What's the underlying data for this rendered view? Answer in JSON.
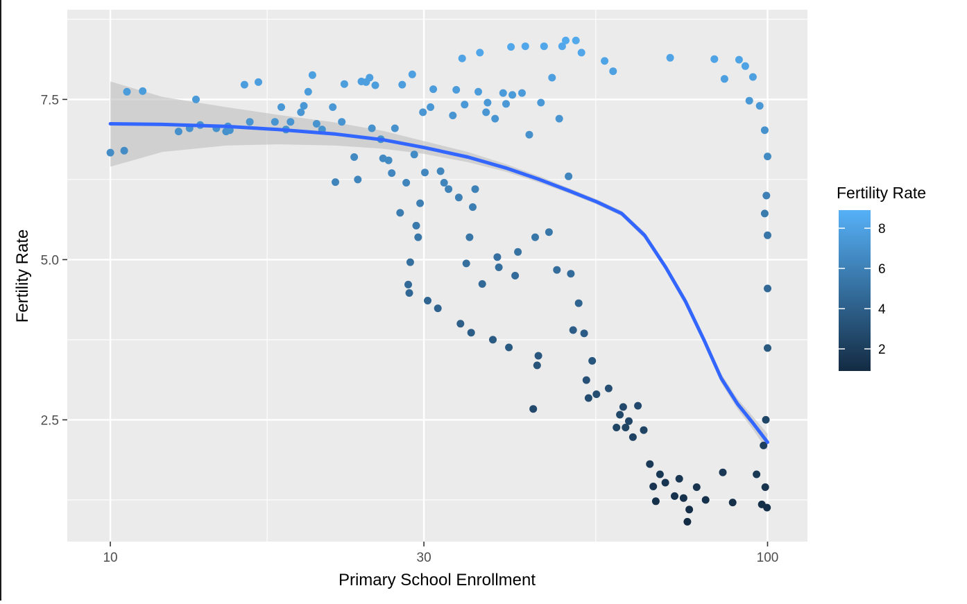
{
  "chart_data": {
    "type": "scatter",
    "title": "",
    "xlabel": "Primary School Enrollment",
    "ylabel": "Fertility Rate",
    "x_scale": "log10",
    "xlim": [
      8.6,
      115
    ],
    "ylim": [
      0.6,
      8.9
    ],
    "x_ticks": [
      10,
      30,
      100
    ],
    "x_tick_labels": [
      "10",
      "30",
      "100"
    ],
    "y_ticks": [
      2.5,
      5.0,
      7.5
    ],
    "y_tick_labels": [
      "2.5",
      "5.0",
      "7.5"
    ],
    "grid": true,
    "legend": {
      "title": "Fertility Rate",
      "placement": "right",
      "type": "colorbar",
      "ticks": [
        2,
        4,
        6,
        8
      ],
      "tick_labels": [
        "2",
        "4",
        "6",
        "8"
      ],
      "range": [
        0.9,
        8.9
      ],
      "color_low": "#132B43",
      "color_high": "#56B1F7"
    },
    "colors": {
      "panel_background": "#EBEBEB",
      "gridline": "#FFFFFF",
      "smooth_line": "#3366FF",
      "confidence_band": "#BEBEBE"
    },
    "smooth": {
      "method": "loess",
      "x": [
        10,
        12,
        15,
        18,
        22,
        26,
        30,
        35,
        40,
        45,
        50,
        55,
        60,
        65,
        70,
        75,
        80,
        85,
        90,
        95,
        100
      ],
      "y": [
        7.12,
        7.11,
        7.08,
        7.03,
        6.96,
        6.87,
        6.75,
        6.6,
        6.43,
        6.25,
        6.07,
        5.9,
        5.72,
        5.38,
        4.88,
        4.35,
        3.75,
        3.15,
        2.75,
        2.45,
        2.15
      ],
      "ci_low": [
        6.45,
        6.68,
        6.78,
        6.8,
        6.78,
        6.73,
        6.65,
        6.52,
        6.37,
        6.2,
        6.03,
        5.86,
        5.68,
        5.33,
        4.83,
        4.29,
        3.69,
        3.08,
        2.67,
        2.35,
        2.02
      ],
      "ci_high": [
        7.78,
        7.54,
        7.38,
        7.26,
        7.14,
        7.01,
        6.85,
        6.68,
        6.49,
        6.3,
        6.11,
        5.94,
        5.76,
        5.43,
        4.93,
        4.41,
        3.81,
        3.22,
        2.83,
        2.55,
        2.28
      ]
    },
    "points": [
      [
        10.0,
        6.67
      ],
      [
        10.5,
        6.7
      ],
      [
        10.6,
        7.62
      ],
      [
        11.2,
        7.63
      ],
      [
        12.7,
        7.0
      ],
      [
        13.2,
        7.05
      ],
      [
        13.5,
        7.5
      ],
      [
        13.7,
        7.1
      ],
      [
        14.5,
        7.05
      ],
      [
        15.0,
        7.0
      ],
      [
        15.1,
        7.08
      ],
      [
        15.2,
        7.02
      ],
      [
        16.0,
        7.73
      ],
      [
        16.3,
        7.15
      ],
      [
        16.8,
        7.77
      ],
      [
        17.8,
        7.15
      ],
      [
        18.2,
        7.38
      ],
      [
        18.5,
        7.03
      ],
      [
        18.8,
        7.15
      ],
      [
        19.5,
        7.3
      ],
      [
        19.7,
        7.4
      ],
      [
        20.0,
        7.62
      ],
      [
        20.3,
        7.88
      ],
      [
        20.6,
        7.12
      ],
      [
        21.0,
        7.03
      ],
      [
        21.8,
        7.38
      ],
      [
        22.0,
        6.21
      ],
      [
        22.5,
        7.15
      ],
      [
        22.7,
        7.74
      ],
      [
        23.5,
        6.6
      ],
      [
        23.8,
        6.25
      ],
      [
        24.1,
        7.78
      ],
      [
        24.5,
        7.77
      ],
      [
        24.8,
        7.84
      ],
      [
        25.0,
        7.05
      ],
      [
        25.3,
        7.72
      ],
      [
        25.8,
        6.88
      ],
      [
        26.0,
        6.58
      ],
      [
        26.5,
        6.55
      ],
      [
        26.8,
        6.35
      ],
      [
        27.1,
        7.05
      ],
      [
        27.6,
        5.73
      ],
      [
        27.8,
        7.73
      ],
      [
        28.2,
        6.2
      ],
      [
        28.4,
        4.61
      ],
      [
        28.5,
        4.48
      ],
      [
        28.6,
        4.96
      ],
      [
        28.8,
        7.89
      ],
      [
        29.0,
        6.64
      ],
      [
        29.2,
        5.53
      ],
      [
        29.4,
        5.35
      ],
      [
        29.6,
        5.88
      ],
      [
        29.9,
        7.3
      ],
      [
        30.1,
        6.36
      ],
      [
        30.4,
        4.36
      ],
      [
        30.7,
        7.38
      ],
      [
        31.0,
        7.66
      ],
      [
        31.5,
        4.24
      ],
      [
        31.8,
        6.38
      ],
      [
        32.2,
        6.2
      ],
      [
        32.7,
        6.1
      ],
      [
        33.2,
        7.25
      ],
      [
        33.6,
        7.65
      ],
      [
        33.9,
        5.97
      ],
      [
        34.1,
        4.0
      ],
      [
        34.3,
        8.14
      ],
      [
        34.6,
        7.42
      ],
      [
        34.8,
        4.94
      ],
      [
        35.2,
        5.35
      ],
      [
        35.4,
        3.86
      ],
      [
        35.6,
        5.82
      ],
      [
        35.9,
        6.1
      ],
      [
        36.3,
        7.62
      ],
      [
        36.5,
        8.23
      ],
      [
        36.8,
        4.62
      ],
      [
        37.3,
        7.3
      ],
      [
        37.5,
        7.45
      ],
      [
        38.2,
        3.75
      ],
      [
        38.8,
        5.04
      ],
      [
        38.5,
        7.2
      ],
      [
        39.0,
        4.88
      ],
      [
        39.6,
        7.6
      ],
      [
        40.0,
        7.43
      ],
      [
        40.4,
        3.63
      ],
      [
        40.7,
        8.32
      ],
      [
        40.9,
        7.57
      ],
      [
        41.3,
        4.75
      ],
      [
        41.7,
        5.12
      ],
      [
        42.3,
        7.6
      ],
      [
        42.8,
        8.33
      ],
      [
        43.4,
        6.95
      ],
      [
        44.0,
        2.67
      ],
      [
        44.3,
        5.35
      ],
      [
        44.8,
        3.5
      ],
      [
        44.6,
        3.35
      ],
      [
        45.2,
        7.45
      ],
      [
        45.7,
        8.33
      ],
      [
        46.5,
        5.43
      ],
      [
        47.0,
        7.84
      ],
      [
        47.8,
        4.84
      ],
      [
        48.2,
        7.2
      ],
      [
        48.7,
        8.33
      ],
      [
        49.3,
        8.42
      ],
      [
        49.8,
        6.3
      ],
      [
        50.2,
        4.78
      ],
      [
        50.6,
        3.9
      ],
      [
        51.1,
        8.42
      ],
      [
        51.6,
        4.32
      ],
      [
        52.1,
        8.23
      ],
      [
        52.6,
        3.85
      ],
      [
        53.0,
        3.12
      ],
      [
        53.4,
        2.84
      ],
      [
        54.1,
        3.42
      ],
      [
        54.9,
        2.9
      ],
      [
        56.5,
        8.1
      ],
      [
        57.3,
        2.99
      ],
      [
        58.2,
        7.94
      ],
      [
        58.9,
        2.38
      ],
      [
        59.6,
        2.58
      ],
      [
        60.3,
        2.7
      ],
      [
        60.8,
        2.38
      ],
      [
        61.5,
        2.48
      ],
      [
        62.4,
        2.23
      ],
      [
        63.5,
        2.72
      ],
      [
        64.8,
        2.34
      ],
      [
        66.2,
        1.81
      ],
      [
        67.0,
        1.46
      ],
      [
        67.6,
        1.23
      ],
      [
        68.6,
        1.65
      ],
      [
        69.9,
        1.52
      ],
      [
        71.1,
        8.15
      ],
      [
        72.2,
        1.31
      ],
      [
        73.4,
        1.58
      ],
      [
        74.5,
        1.28
      ],
      [
        75.5,
        0.91
      ],
      [
        76.0,
        1.1
      ],
      [
        78.0,
        1.45
      ],
      [
        80.5,
        1.25
      ],
      [
        83.0,
        8.13
      ],
      [
        85.5,
        1.68
      ],
      [
        86.0,
        7.82
      ],
      [
        88.5,
        1.21
      ],
      [
        90.5,
        8.12
      ],
      [
        92.5,
        8.02
      ],
      [
        93.8,
        7.48
      ],
      [
        95.0,
        7.85
      ],
      [
        96.2,
        1.65
      ],
      [
        97.3,
        7.4
      ],
      [
        98.0,
        1.18
      ],
      [
        99.0,
        7.02
      ],
      [
        99.4,
        2.5
      ],
      [
        99.8,
        1.13
      ],
      [
        100.0,
        3.62
      ],
      [
        100.0,
        4.55
      ],
      [
        100.0,
        5.38
      ],
      [
        100.0,
        6.61
      ],
      [
        99.6,
        6.0
      ],
      [
        99.2,
        1.45
      ],
      [
        98.6,
        2.1
      ],
      [
        99.0,
        5.72
      ]
    ]
  }
}
